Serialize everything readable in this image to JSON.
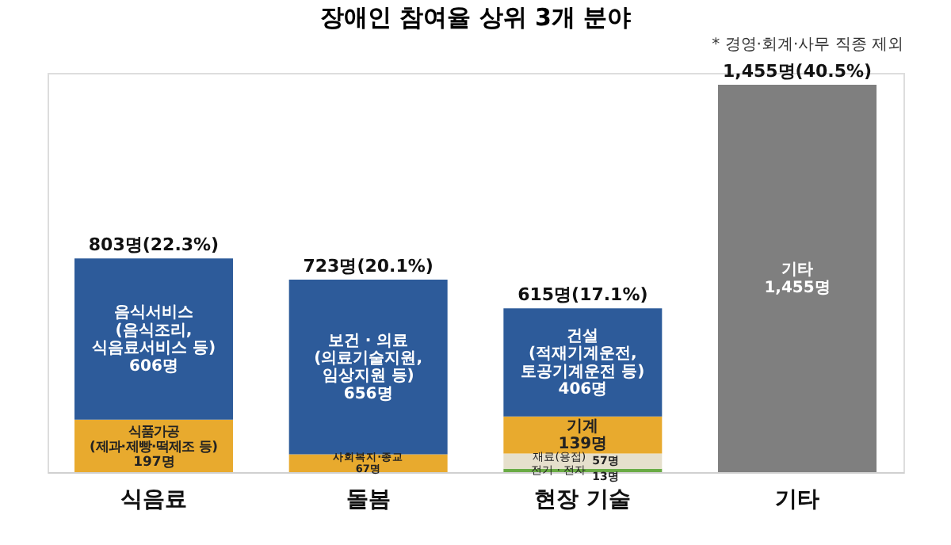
{
  "chart_data": {
    "type": "bar",
    "title": "장애인 참여율 상위 3개 분야",
    "categories": [
      "식음료",
      "돌봄",
      "현장 기술",
      "기타"
    ],
    "stacked": true,
    "series": [
      {
        "colors": [
          "#e8aa2e",
          "#e8aa2e",
          "#6aab45",
          "#7f7f7f"
        ],
        "values": [
          197,
          67,
          13,
          1455
        ],
        "value_labels": [
          "식품가공\n(제과·제빵·떡제조 등)\n197명",
          "사회복지·종교\n67명",
          "13명",
          "기타\n1,455명"
        ]
      },
      {
        "colors": [
          "#2d5b9a",
          "#2d5b9a",
          "#e6e0cc",
          null
        ],
        "values": [
          606,
          656,
          57,
          null
        ],
        "value_labels": [
          "음식서비스\n(음식조리,\n식음료서비스 등)\n606명",
          "보건 · 의료\n(의료기술지원,\n임상지원 등)\n656명",
          "57명",
          null
        ]
      },
      {
        "colors": [
          null,
          null,
          "#e8aa2e",
          null
        ],
        "values": [
          null,
          null,
          139,
          null
        ],
        "value_labels": [
          null,
          null,
          "기계\n139명",
          null
        ]
      },
      {
        "colors": [
          null,
          null,
          "#2d5b9a",
          null
        ],
        "values": [
          null,
          null,
          406,
          null
        ],
        "value_labels": [
          null,
          null,
          "건설\n(적재기계운전,\n토공기계운전 등)\n406명",
          null
        ]
      }
    ],
    "totals": [
      "803명(22.3%)",
      "723명(20.1%)",
      "615명(17.1%)",
      "1,455명(40.5%)"
    ],
    "ylim": [
      0,
      1500
    ],
    "tick_labels": "x",
    "grid": false,
    "annotations": [
      "* 경영·회계·사무 직종 제외",
      {
        "text": "재료(용접)",
        "x": "현장 기술",
        "y": 57
      },
      {
        "text": "전기 · 전자",
        "x": "현장 기술",
        "y": 6.5
      }
    ]
  }
}
